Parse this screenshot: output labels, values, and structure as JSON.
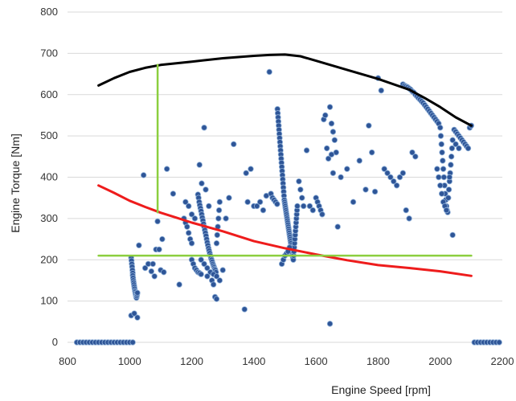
{
  "chart_data": {
    "type": "scatter",
    "title": "",
    "xlabel": "Engine Speed [rpm]",
    "ylabel": "Engine Torque [Nm]",
    "xlim": [
      800,
      2200
    ],
    "ylim": [
      0,
      800
    ],
    "x_ticks": [
      800,
      1000,
      1200,
      1400,
      1600,
      1800,
      2000,
      2200
    ],
    "y_ticks": [
      0,
      100,
      200,
      300,
      400,
      500,
      600,
      700,
      800
    ],
    "grid": "horizontal",
    "legend": "none",
    "colors": {
      "points": "#2e5597",
      "point_edge": "#8fb0d8",
      "max_torque_curve": "#000000",
      "red_curve": "#ee1c1c",
      "green_lines": "#8ccf3f"
    },
    "lines": [
      {
        "id": "max-torque-curve",
        "color": "#000000",
        "x": [
          900,
          950,
          1000,
          1050,
          1100,
          1200,
          1300,
          1400,
          1450,
          1500,
          1550,
          1600,
          1700,
          1800,
          1900,
          1950,
          2000,
          2050,
          2100
        ],
        "y": [
          622,
          640,
          655,
          665,
          672,
          680,
          688,
          694,
          696,
          697,
          693,
          682,
          660,
          638,
          612,
          592,
          570,
          545,
          525
        ]
      },
      {
        "id": "red-curve",
        "color": "#ee1c1c",
        "x": [
          900,
          950,
          1000,
          1050,
          1100,
          1150,
          1200,
          1300,
          1400,
          1500,
          1600,
          1700,
          1800,
          1900,
          2000,
          2100
        ],
        "y": [
          380,
          362,
          343,
          328,
          314,
          302,
          290,
          269,
          245,
          228,
          213,
          199,
          187,
          180,
          172,
          161
        ]
      },
      {
        "id": "green-horizontal",
        "color": "#8ccf3f",
        "x": [
          900,
          2100
        ],
        "y": [
          210,
          210
        ]
      },
      {
        "id": "green-vertical",
        "color": "#8ccf3f",
        "x": [
          1090,
          1090
        ],
        "y": [
          315,
          672
        ]
      }
    ],
    "series": [
      {
        "x": [
          830,
          840,
          850,
          860,
          870,
          880,
          890,
          900,
          910,
          920,
          930,
          940,
          950,
          960,
          970,
          980,
          990,
          1000,
          1010,
          2110,
          2120,
          2130,
          2140,
          2150,
          2160,
          2170,
          2180,
          2190
        ],
        "y": [
          0,
          0,
          0,
          0,
          0,
          0,
          0,
          0,
          0,
          0,
          0,
          0,
          0,
          0,
          0,
          0,
          0,
          0,
          0,
          0,
          0,
          0,
          0,
          0,
          0,
          0,
          0,
          0
        ]
      },
      {
        "x": [
          1005,
          1006,
          1007,
          1008,
          1009,
          1010,
          1010,
          1011,
          1012,
          1013,
          1014,
          1015,
          1016,
          1017,
          1018,
          1019,
          1020,
          1021,
          1022,
          1023,
          1024,
          1025,
          1005,
          1015,
          1025
        ],
        "y": [
          205,
          198,
          190,
          183,
          175,
          168,
          162,
          156,
          150,
          145,
          140,
          135,
          130,
          125,
          122,
          118,
          114,
          110,
          108,
          112,
          116,
          120,
          65,
          70,
          60
        ]
      },
      {
        "x": [
          1030,
          1045,
          1050,
          1060,
          1070,
          1075,
          1080,
          1085,
          1090,
          1095,
          1100,
          1105,
          1110,
          1120,
          1140,
          1160,
          1175,
          1180,
          1185,
          1190,
          1195,
          1200,
          1200,
          1205,
          1210,
          1215,
          1220,
          1225,
          1230,
          1180,
          1190,
          1200,
          1210
        ],
        "y": [
          235,
          405,
          180,
          190,
          172,
          190,
          160,
          225,
          293,
          225,
          175,
          250,
          170,
          420,
          360,
          140,
          300,
          290,
          280,
          265,
          250,
          240,
          200,
          190,
          180,
          175,
          170,
          168,
          165,
          340,
          330,
          310,
          300
        ]
      },
      {
        "x": [
          1220,
          1222,
          1224,
          1226,
          1228,
          1230,
          1232,
          1234,
          1236,
          1238,
          1240,
          1242,
          1244,
          1246,
          1248,
          1250,
          1252,
          1254,
          1256,
          1258,
          1260,
          1262,
          1264,
          1266,
          1268,
          1270,
          1272,
          1274,
          1276,
          1278,
          1280,
          1282,
          1284,
          1286,
          1288,
          1290,
          1230,
          1240,
          1250,
          1260,
          1270,
          1280,
          1290,
          1300,
          1310,
          1320,
          1335,
          1240,
          1250,
          1265,
          1270,
          1275,
          1280,
          1225,
          1232,
          1245,
          1255
        ],
        "y": [
          358,
          350,
          340,
          332,
          325,
          318,
          310,
          302,
          295,
          287,
          280,
          272,
          265,
          258,
          250,
          242,
          235,
          228,
          222,
          216,
          210,
          204,
          200,
          195,
          190,
          186,
          182,
          178,
          175,
          170,
          240,
          260,
          280,
          300,
          320,
          340,
          200,
          190,
          180,
          170,
          165,
          160,
          150,
          175,
          300,
          350,
          480,
          520,
          160,
          150,
          140,
          110,
          105,
          430,
          385,
          370,
          330
        ]
      },
      {
        "x": [
          1370,
          1375,
          1380,
          1390,
          1400,
          1410,
          1420,
          1430,
          1440,
          1450,
          1455,
          1460,
          1465,
          1470,
          1475,
          1476,
          1477,
          1478,
          1479,
          1480,
          1481,
          1482,
          1483,
          1484,
          1485,
          1486,
          1487,
          1488,
          1489,
          1490,
          1491,
          1492,
          1493,
          1494,
          1495,
          1496,
          1497,
          1498,
          1499,
          1500,
          1501,
          1502,
          1503,
          1504,
          1505,
          1506,
          1507,
          1508,
          1509,
          1510,
          1511,
          1512,
          1513,
          1514,
          1515,
          1516,
          1517,
          1518,
          1519,
          1520,
          1521,
          1522,
          1523,
          1524,
          1525,
          1526,
          1527,
          1528,
          1529,
          1530,
          1531,
          1532,
          1533,
          1534,
          1535,
          1536,
          1537,
          1538,
          1539,
          1540
        ],
        "y": [
          80,
          410,
          340,
          420,
          330,
          330,
          340,
          320,
          355,
          655,
          360,
          350,
          345,
          340,
          335,
          565,
          555,
          545,
          535,
          525,
          515,
          505,
          495,
          485,
          475,
          465,
          455,
          445,
          435,
          425,
          415,
          405,
          395,
          385,
          375,
          365,
          355,
          345,
          340,
          335,
          330,
          325,
          320,
          315,
          310,
          305,
          300,
          295,
          290,
          285,
          280,
          275,
          270,
          265,
          260,
          255,
          250,
          245,
          240,
          235,
          230,
          225,
          220,
          215,
          210,
          205,
          200,
          210,
          220,
          230,
          240,
          250,
          260,
          270,
          280,
          290,
          300,
          310,
          320,
          330
        ]
      },
      {
        "x": [
          1545,
          1550,
          1555,
          1560,
          1570,
          1580,
          1590,
          1600,
          1605,
          1610,
          1615,
          1620,
          1625,
          1630,
          1635,
          1640,
          1645,
          1650,
          1655,
          1660,
          1665,
          1670,
          1680,
          1700,
          1720,
          1740,
          1760,
          1770,
          1780,
          1790,
          1800,
          1810,
          1820,
          1830,
          1840,
          1850,
          1860,
          1870,
          1880,
          1890,
          1900,
          1910,
          1920,
          1645,
          1650,
          1655,
          1490,
          1495,
          1500,
          1505,
          1510,
          1515
        ],
        "y": [
          390,
          370,
          350,
          330,
          465,
          330,
          320,
          350,
          340,
          330,
          320,
          310,
          540,
          550,
          470,
          445,
          570,
          530,
          510,
          490,
          460,
          280,
          400,
          420,
          340,
          440,
          370,
          525,
          460,
          365,
          640,
          610,
          420,
          410,
          400,
          390,
          380,
          400,
          410,
          320,
          300,
          460,
          450,
          45,
          455,
          410,
          190,
          200,
          210,
          215,
          220,
          230
        ]
      },
      {
        "x": [
          1880,
          1885,
          1890,
          1895,
          1900,
          1905,
          1910,
          1915,
          1920,
          1925,
          1930,
          1935,
          1940,
          1945,
          1950,
          1955,
          1960,
          1965,
          1970,
          1975,
          1980,
          1985,
          1990,
          1995,
          2000,
          2002,
          2004,
          2006,
          2008,
          2010,
          2012,
          2014,
          2016,
          2018,
          2020,
          2022,
          2024,
          2026,
          2028,
          2030,
          2032,
          2034,
          2036,
          2038,
          2040,
          2045,
          2050,
          2055,
          2060,
          2065,
          2070,
          2075,
          2080,
          2085,
          2090,
          2095,
          2100,
          1990,
          1995,
          2000,
          2005,
          2010,
          2015,
          2020,
          2030,
          2040,
          2050,
          2060
        ],
        "y": [
          625,
          622,
          620,
          618,
          615,
          612,
          608,
          605,
          600,
          596,
          592,
          588,
          584,
          580,
          575,
          570,
          565,
          560,
          555,
          550,
          545,
          540,
          535,
          530,
          520,
          500,
          480,
          460,
          440,
          420,
          400,
          380,
          360,
          345,
          330,
          320,
          315,
          350,
          370,
          390,
          410,
          430,
          450,
          470,
          490,
          515,
          510,
          505,
          500,
          495,
          490,
          485,
          480,
          475,
          470,
          520,
          525,
          420,
          400,
          380,
          360,
          340,
          330,
          320,
          400,
          260,
          480,
          470
        ]
      }
    ]
  }
}
